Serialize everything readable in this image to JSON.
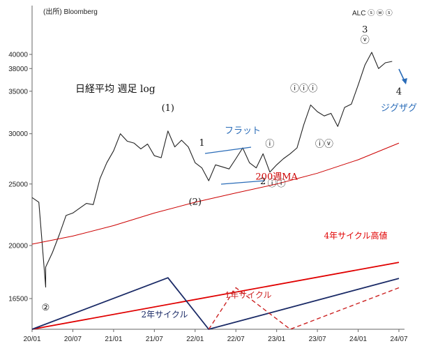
{
  "chart_data": {
    "type": "line",
    "title": "日経平均 週足 log",
    "source": "(出所) Bloomberg",
    "corner_label": "ALC ⓢ ⓦ ⓢ",
    "xlabel": "",
    "ylabel": "",
    "y_scale": "log",
    "grid": false,
    "y_ticks": [
      16500,
      20000,
      25000,
      30000,
      35000,
      38000,
      40000
    ],
    "y_tick_labels": [
      "16500",
      "20000",
      "25000",
      "30000",
      "35000",
      "38000",
      "40000"
    ],
    "x_ticks": [
      "2020-01",
      "2020-07",
      "2021-01",
      "2021-07",
      "2022-01",
      "2022-07",
      "2023-01",
      "2023-07",
      "2024-01",
      "2024-07"
    ],
    "x_tick_labels": [
      "20/01",
      "20/07",
      "21/01",
      "21/07",
      "22/01",
      "22/07",
      "23/01",
      "23/07",
      "24/01",
      "24/07"
    ],
    "series": [
      {
        "name": "日経平均",
        "color": "#222222",
        "points": [
          [
            "2020-01",
            23800
          ],
          [
            "2020-02",
            23400
          ],
          [
            "2020-03",
            17200
          ],
          [
            "2020-03",
            18500
          ],
          [
            "2020-04",
            19500
          ],
          [
            "2020-05",
            20800
          ],
          [
            "2020-06",
            22300
          ],
          [
            "2020-07",
            22500
          ],
          [
            "2020-08",
            22900
          ],
          [
            "2020-09",
            23300
          ],
          [
            "2020-10",
            23200
          ],
          [
            "2020-11",
            25500
          ],
          [
            "2020-12",
            27000
          ],
          [
            "2021-01",
            28200
          ],
          [
            "2021-02",
            30000
          ],
          [
            "2021-03",
            29200
          ],
          [
            "2021-04",
            29000
          ],
          [
            "2021-05",
            28400
          ],
          [
            "2021-06",
            28900
          ],
          [
            "2021-07",
            27700
          ],
          [
            "2021-08",
            27500
          ],
          [
            "2021-09",
            30300
          ],
          [
            "2021-10",
            28600
          ],
          [
            "2021-11",
            29300
          ],
          [
            "2021-12",
            28600
          ],
          [
            "2022-01",
            27000
          ],
          [
            "2022-02",
            26500
          ],
          [
            "2022-03",
            25300
          ],
          [
            "2022-04",
            26800
          ],
          [
            "2022-05",
            26600
          ],
          [
            "2022-06",
            26400
          ],
          [
            "2022-07",
            27400
          ],
          [
            "2022-08",
            28500
          ],
          [
            "2022-09",
            27000
          ],
          [
            "2022-10",
            26500
          ],
          [
            "2022-11",
            27900
          ],
          [
            "2022-12",
            26100
          ],
          [
            "2023-01",
            26800
          ],
          [
            "2023-02",
            27400
          ],
          [
            "2023-03",
            27900
          ],
          [
            "2023-04",
            28500
          ],
          [
            "2023-05",
            31000
          ],
          [
            "2023-06",
            33300
          ],
          [
            "2023-07",
            32500
          ],
          [
            "2023-08",
            32000
          ],
          [
            "2023-09",
            32300
          ],
          [
            "2023-10",
            30800
          ],
          [
            "2023-11",
            33000
          ],
          [
            "2023-12",
            33400
          ],
          [
            "2024-01",
            35800
          ],
          [
            "2024-02",
            38500
          ],
          [
            "2024-03",
            40300
          ],
          [
            "2024-04",
            38000
          ],
          [
            "2024-05",
            38800
          ],
          [
            "2024-06",
            39000
          ]
        ]
      },
      {
        "name": "200週MA",
        "color": "#cc0000",
        "points": [
          [
            "2020-01",
            20100
          ],
          [
            "2020-07",
            20700
          ],
          [
            "2021-01",
            21500
          ],
          [
            "2021-07",
            22500
          ],
          [
            "2022-01",
            23400
          ],
          [
            "2022-07",
            24200
          ],
          [
            "2023-01",
            25000
          ],
          [
            "2023-07",
            26000
          ],
          [
            "2024-01",
            27300
          ],
          [
            "2024-07",
            29000
          ]
        ]
      }
    ],
    "cycle_lines": [
      {
        "name": "4年サイクル高値",
        "color": "#e00000",
        "style": "solid",
        "lower": 15000,
        "upper": 21100,
        "points": [
          [
            "2020-01",
            15000
          ],
          [
            "2024-07",
            20000
          ]
        ]
      },
      {
        "name": "2年サイクル",
        "color": "#1a2a66",
        "style": "solid",
        "lower": 15000,
        "upper": 21100,
        "points": [
          [
            "2020-01",
            15000
          ],
          [
            "2021-09",
            18850
          ],
          [
            "2022-03",
            15000
          ],
          [
            "2024-07",
            18800
          ]
        ]
      },
      {
        "name": "1年サイクル",
        "color": "#cc2222",
        "style": "dashed",
        "lower": 15000,
        "upper": 21100,
        "points": [
          [
            "2022-03",
            15000
          ],
          [
            "2022-07",
            18100
          ],
          [
            "2023-03",
            15000
          ],
          [
            "2024-07",
            18100
          ]
        ]
      }
    ],
    "annotations": [
      {
        "text": "(1)",
        "at": [
          "2021-09",
          32600
        ]
      },
      {
        "text": "1",
        "at": [
          "2022-02",
          28700
        ]
      },
      {
        "text": "フラット",
        "at": [
          "2022-08",
          30000
        ],
        "color": "#2a6cb8"
      },
      {
        "text": "2",
        "at": [
          "2022-11",
          25000
        ]
      },
      {
        "text": "(2)",
        "at": [
          "2022-01",
          23200
        ]
      },
      {
        "text": "ⓘ",
        "at": [
          "2022-12",
          28600
        ]
      },
      {
        "text": "ⓘⓘ",
        "at": [
          "2023-01",
          24800
        ]
      },
      {
        "text": "ⓘⓘⓘ",
        "at": [
          "2023-05",
          35000
        ]
      },
      {
        "text": "ⓘⓥ",
        "at": [
          "2023-08",
          28600
        ]
      },
      {
        "text": "3",
        "at": [
          "2024-02",
          43300
        ]
      },
      {
        "text": "ⓥ",
        "at": [
          "2024-02",
          41700
        ]
      },
      {
        "text": "4",
        "at": [
          "2024-07",
          34600
        ]
      },
      {
        "text": "ジグザグ",
        "at": [
          "2024-07",
          32600
        ],
        "color": "#2a6cb8"
      },
      {
        "text": "200週MA",
        "at": [
          "2023-01",
          25400
        ],
        "color": "#cc0000"
      },
      {
        "text": "②",
        "at": [
          "2020-03",
          15800
        ]
      }
    ]
  }
}
